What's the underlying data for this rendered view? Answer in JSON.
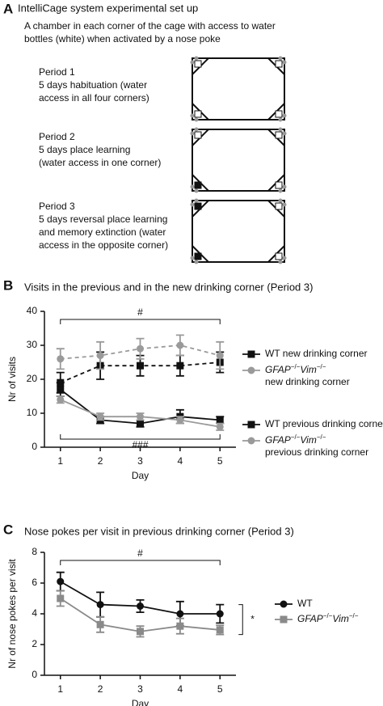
{
  "panel_a": {
    "label": "A",
    "title": "IntelliCage system experimental set up",
    "description": [
      "A chamber in each corner of the cage with access to water",
      "bottles (white) when activated by a nose poke"
    ],
    "periods": [
      [
        "Period 1",
        "5 days habituation (water",
        "access in all four corners)"
      ],
      [
        "Period 2",
        "5 days place learning",
        "(water access in one corner)"
      ],
      [
        "Period 3",
        "5 days  reversal place learning",
        "and memory extinction (water",
        "access in the opposite corner)"
      ]
    ]
  },
  "chart_data": [
    {
      "panel_label": "B",
      "type": "line",
      "title": "Visits in the previous and in the new drinking corner (Period 3)",
      "x_label": "Day",
      "y_label": "Nr of visits",
      "x": [
        1,
        2,
        3,
        4,
        5
      ],
      "xlim": [
        0.6,
        5.4
      ],
      "xticks": [
        1,
        2,
        3,
        4,
        5
      ],
      "ylim": [
        0,
        40
      ],
      "yticks": [
        0,
        10,
        20,
        30,
        40
      ],
      "series": [
        {
          "name": "WT new drinking corner",
          "color": "#111111",
          "marker": "square",
          "dashed": true,
          "values": [
            19,
            24,
            24,
            24,
            25
          ],
          "errors": [
            3,
            4,
            3,
            3,
            3
          ]
        },
        {
          "name": "GFAP−/−Vim−/− new drinking corner",
          "color": "#9a9a9a",
          "marker": "circle",
          "dashed": true,
          "values": [
            26,
            27,
            29,
            30,
            27
          ],
          "errors": [
            3,
            4,
            3,
            3,
            4
          ]
        },
        {
          "name": "WT previous drinking corner",
          "color": "#111111",
          "marker": "square",
          "dashed": false,
          "values": [
            17,
            8,
            7,
            9,
            8
          ],
          "errors": [
            2,
            1,
            1,
            2,
            1
          ]
        },
        {
          "name": "GFAP−/−Vim−/− previous drinking corner",
          "color": "#9a9a9a",
          "marker": "circle",
          "dashed": false,
          "values": [
            14,
            9,
            9,
            8,
            6
          ],
          "errors": [
            1,
            1,
            1,
            1,
            1
          ]
        }
      ],
      "annotations": [
        "#",
        "###"
      ]
    },
    {
      "panel_label": "C",
      "type": "line",
      "title": "Nose pokes per visit in previous drinking corner (Period 3)",
      "x_label": "Day",
      "y_label": "Nr of nose pokes per visit",
      "x": [
        1,
        2,
        3,
        4,
        5
      ],
      "xlim": [
        0.6,
        5.4
      ],
      "xticks": [
        1,
        2,
        3,
        4,
        5
      ],
      "ylim": [
        0,
        8
      ],
      "yticks": [
        0,
        2,
        4,
        6,
        8
      ],
      "series": [
        {
          "name": "WT",
          "color": "#111111",
          "marker": "circle",
          "dashed": false,
          "values": [
            6.1,
            4.6,
            4.5,
            4.0,
            4.0
          ],
          "errors": [
            0.6,
            0.8,
            0.4,
            0.8,
            0.6
          ]
        },
        {
          "name": "GFAP−/−Vim−/−",
          "color": "#8a8a8a",
          "marker": "square",
          "dashed": false,
          "values": [
            5.0,
            3.3,
            2.85,
            3.2,
            2.95
          ],
          "errors": [
            0.5,
            0.5,
            0.35,
            0.5,
            0.3
          ]
        }
      ],
      "annotations": [
        "#",
        "*"
      ]
    }
  ]
}
